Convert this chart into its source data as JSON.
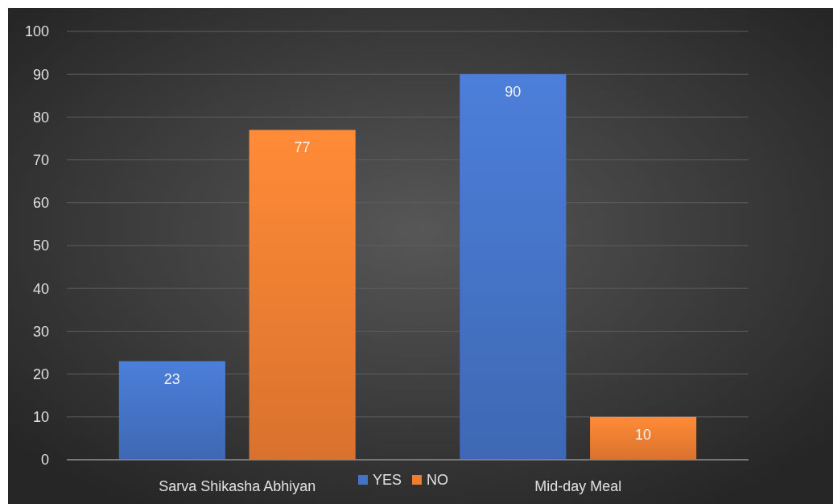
{
  "chart_data": {
    "type": "bar",
    "categories": [
      "Sarva Shikasha Abhiyan",
      "Mid-day Meal"
    ],
    "series": [
      {
        "name": "YES",
        "color": "#4472c4",
        "values": [
          23,
          90
        ]
      },
      {
        "name": "NO",
        "color": "#ed7d31",
        "values": [
          77,
          10
        ]
      }
    ],
    "ylim": [
      0,
      100
    ],
    "yticks": [
      0,
      10,
      20,
      30,
      40,
      50,
      60,
      70,
      80,
      90,
      100
    ],
    "grid": "y",
    "legend": "bottom",
    "data_labels": true
  }
}
